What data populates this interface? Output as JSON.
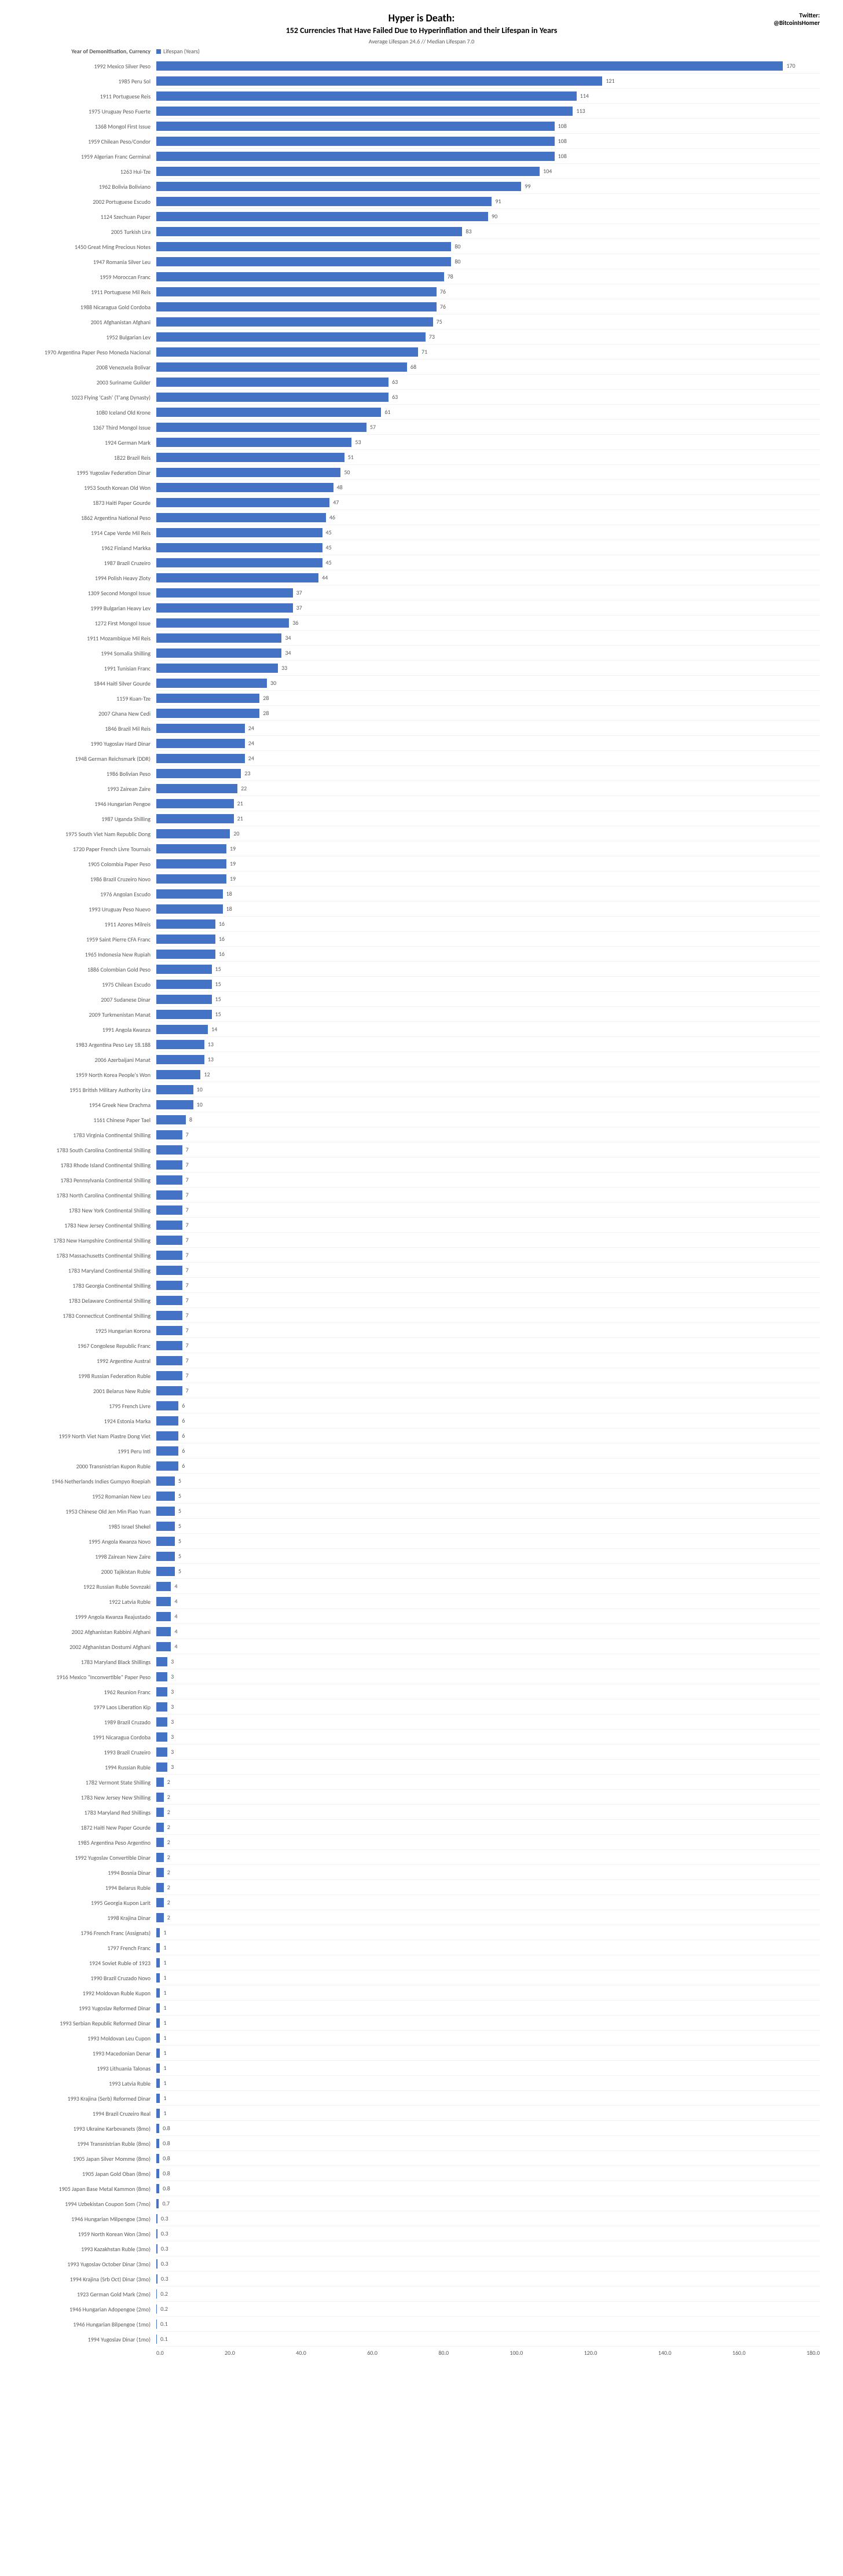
{
  "title": "Hyper is Death:",
  "subtitle": "152 Currencies That Have Failed Due to Hyperinflation and their Lifespan in Years",
  "avg_line": "Average Lifespan 24.6  //  Median Lifespan 7.0",
  "twitter_label": "Twitter:",
  "twitter_handle": "@BitcoinIsHomer",
  "y_axis_title": "Year of Demonitisation, Currency",
  "legend_label": "Lifespan (Years)",
  "bar_color": "#4472c4",
  "background_color": "#ffffff",
  "label_color": "#595959",
  "x_max": 180,
  "x_ticks": [
    "0.0",
    "20.0",
    "40.0",
    "60.0",
    "80.0",
    "100.0",
    "120.0",
    "140.0",
    "160.0",
    "180.0"
  ],
  "rows": [
    {
      "label": "1992 Mexico Silver Peso",
      "value": 170,
      "display": "170"
    },
    {
      "label": "1985 Peru Sol",
      "value": 121,
      "display": "121"
    },
    {
      "label": "1911 Portuguese Reis",
      "value": 114,
      "display": "114"
    },
    {
      "label": "1975 Uruguay Peso Fuerte",
      "value": 113,
      "display": "113"
    },
    {
      "label": "1368 Mongol First Issue",
      "value": 108,
      "display": "108"
    },
    {
      "label": "1959 Chilean Peso/Condor",
      "value": 108,
      "display": "108"
    },
    {
      "label": "1959 Algerian Franc Germinal",
      "value": 108,
      "display": "108"
    },
    {
      "label": "1263 Hui-Tze",
      "value": 104,
      "display": "104"
    },
    {
      "label": "1962 Bolivia Boliviano",
      "value": 99,
      "display": "99"
    },
    {
      "label": "2002 Portuguese Escudo",
      "value": 91,
      "display": "91"
    },
    {
      "label": "1124 Szechuan Paper",
      "value": 90,
      "display": "90"
    },
    {
      "label": "2005 Turkish Lira",
      "value": 83,
      "display": "83"
    },
    {
      "label": "1450 Great Ming Precious Notes",
      "value": 80,
      "display": "80"
    },
    {
      "label": "1947 Romania Silver Leu",
      "value": 80,
      "display": "80"
    },
    {
      "label": "1959 Moroccan Franc",
      "value": 78,
      "display": "78"
    },
    {
      "label": "1911 Portuguese Mil Reis",
      "value": 76,
      "display": "76"
    },
    {
      "label": "1988 Nicaragua Gold Cordoba",
      "value": 76,
      "display": "76"
    },
    {
      "label": "2001 Afghanistan Afghani",
      "value": 75,
      "display": "75"
    },
    {
      "label": "1952 Bulgarian Lev",
      "value": 73,
      "display": "73"
    },
    {
      "label": "1970 Argentina Paper Peso Moneda Nacional",
      "value": 71,
      "display": "71"
    },
    {
      "label": "2008 Venezuela Bolivar",
      "value": 68,
      "display": "68"
    },
    {
      "label": "2003 Suriname Guilder",
      "value": 63,
      "display": "63"
    },
    {
      "label": "1023 Flying 'Cash' (T'ang Dynasty)",
      "value": 63,
      "display": "63"
    },
    {
      "label": "1080 Iceland Old Krone",
      "value": 61,
      "display": "61"
    },
    {
      "label": "1367 Third Mongol Issue",
      "value": 57,
      "display": "57"
    },
    {
      "label": "1924 German Mark",
      "value": 53,
      "display": "53"
    },
    {
      "label": "1822 Brazil Reis",
      "value": 51,
      "display": "51"
    },
    {
      "label": "1995 Yugoslav Federation Dinar",
      "value": 50,
      "display": "50"
    },
    {
      "label": "1953 South Korean Old Won",
      "value": 48,
      "display": "48"
    },
    {
      "label": "1873 Haiti Paper Gourde",
      "value": 47,
      "display": "47"
    },
    {
      "label": "1862 Argentina National Peso",
      "value": 46,
      "display": "46"
    },
    {
      "label": "1914 Cape Verde Mil Reis",
      "value": 45,
      "display": "45"
    },
    {
      "label": "1962 Finland Markka",
      "value": 45,
      "display": "45"
    },
    {
      "label": "1987 Brazil Cruzeiro",
      "value": 45,
      "display": "45"
    },
    {
      "label": "1994 Polish Heavy Zloty",
      "value": 44,
      "display": "44"
    },
    {
      "label": "1309 Second Mongol Issue",
      "value": 37,
      "display": "37"
    },
    {
      "label": "1999 Bulgarian Heavy Lev",
      "value": 37,
      "display": "37"
    },
    {
      "label": "1272 First Mongol Issue",
      "value": 36,
      "display": "36"
    },
    {
      "label": "1911 Mozambique Mil Reis",
      "value": 34,
      "display": "34"
    },
    {
      "label": "1994 Somalia Shilling",
      "value": 34,
      "display": "34"
    },
    {
      "label": "1991 Tunisian Franc",
      "value": 33,
      "display": "33"
    },
    {
      "label": "1844 Haiti Silver Gourde",
      "value": 30,
      "display": "30"
    },
    {
      "label": "1159 Kuan-Tze",
      "value": 28,
      "display": "28"
    },
    {
      "label": "2007 Ghana New Cedi",
      "value": 28,
      "display": "28"
    },
    {
      "label": "1846 Brazil Mil Reis",
      "value": 24,
      "display": "24"
    },
    {
      "label": "1990 Yugoslav Hard Dinar",
      "value": 24,
      "display": "24"
    },
    {
      "label": "1948 German Reichsmark (DDR)",
      "value": 24,
      "display": "24"
    },
    {
      "label": "1986 Bolivian Peso",
      "value": 23,
      "display": "23"
    },
    {
      "label": "1993 Zairean Zaire",
      "value": 22,
      "display": "22"
    },
    {
      "label": "1946 Hungarian Pengoe",
      "value": 21,
      "display": "21"
    },
    {
      "label": "1987 Uganda Shilling",
      "value": 21,
      "display": "21"
    },
    {
      "label": "1975 South Viet Nam Republic Dong",
      "value": 20,
      "display": "20"
    },
    {
      "label": "1720 Paper French Livre Tournais",
      "value": 19,
      "display": "19"
    },
    {
      "label": "1905 Colombia Paper Peso",
      "value": 19,
      "display": "19"
    },
    {
      "label": "1986 Brazil Cruzeiro Novo",
      "value": 19,
      "display": "19"
    },
    {
      "label": "1976 Angolan Escudo",
      "value": 18,
      "display": "18"
    },
    {
      "label": "1993 Uruguay Peso Nuevo",
      "value": 18,
      "display": "18"
    },
    {
      "label": "1911 Azores Milreis",
      "value": 16,
      "display": "16"
    },
    {
      "label": "1959 Saint Pierre CFA Franc",
      "value": 16,
      "display": "16"
    },
    {
      "label": "1965 Indonesia New Rupiah",
      "value": 16,
      "display": "16"
    },
    {
      "label": "1886 Colombian Gold Peso",
      "value": 15,
      "display": "15"
    },
    {
      "label": "1975 Chilean Escudo",
      "value": 15,
      "display": "15"
    },
    {
      "label": "2007 Sudanese Dinar",
      "value": 15,
      "display": "15"
    },
    {
      "label": "2009 Turkmenistan Manat",
      "value": 15,
      "display": "15"
    },
    {
      "label": "1991 Angola Kwanza",
      "value": 14,
      "display": "14"
    },
    {
      "label": "1983 Argentina Peso Ley 18.188",
      "value": 13,
      "display": "13"
    },
    {
      "label": "2006 Azerbaijani Manat",
      "value": 13,
      "display": "13"
    },
    {
      "label": "1959 North Korea People's Won",
      "value": 12,
      "display": "12"
    },
    {
      "label": "1951 British Military Authority Lira",
      "value": 10,
      "display": "10"
    },
    {
      "label": "1954 Greek New Drachma",
      "value": 10,
      "display": "10"
    },
    {
      "label": "1161 Chinese Paper Tael",
      "value": 8,
      "display": "8"
    },
    {
      "label": "1783 Virginia Continental Shilling",
      "value": 7,
      "display": "7"
    },
    {
      "label": "1783 South Carolina Continental Shilling",
      "value": 7,
      "display": "7"
    },
    {
      "label": "1783 Rhode Island Continental Shilling",
      "value": 7,
      "display": "7"
    },
    {
      "label": "1783 Pennsylvania Continental Shilling",
      "value": 7,
      "display": "7"
    },
    {
      "label": "1783 North Carolina Continental Shilling",
      "value": 7,
      "display": "7"
    },
    {
      "label": "1783 New York Continental Shilling",
      "value": 7,
      "display": "7"
    },
    {
      "label": "1783 New Jersey Continental Shilling",
      "value": 7,
      "display": "7"
    },
    {
      "label": "1783 New Hampshire Continental Shilling",
      "value": 7,
      "display": "7"
    },
    {
      "label": "1783 Massachusetts Continental Shilling",
      "value": 7,
      "display": "7"
    },
    {
      "label": "1783 Maryland Continental Shilling",
      "value": 7,
      "display": "7"
    },
    {
      "label": "1783 Georgia Continental Shilling",
      "value": 7,
      "display": "7"
    },
    {
      "label": "1783 Delaware Continental Shilling",
      "value": 7,
      "display": "7"
    },
    {
      "label": "1783 Connecticut Continental Shilling",
      "value": 7,
      "display": "7"
    },
    {
      "label": "1925 Hungarian Korona",
      "value": 7,
      "display": "7"
    },
    {
      "label": "1967 Congolese Republic Franc",
      "value": 7,
      "display": "7"
    },
    {
      "label": "1992 Argentine Austral",
      "value": 7,
      "display": "7"
    },
    {
      "label": "1998 Russian Federation Ruble",
      "value": 7,
      "display": "7"
    },
    {
      "label": "2001 Belarus New Ruble",
      "value": 7,
      "display": "7"
    },
    {
      "label": "1795 French Livre",
      "value": 6,
      "display": "6"
    },
    {
      "label": "1924 Estonia Marka",
      "value": 6,
      "display": "6"
    },
    {
      "label": "1959 North Viet Nam Piastre Dong Viet",
      "value": 6,
      "display": "6"
    },
    {
      "label": "1991 Peru Inti",
      "value": 6,
      "display": "6"
    },
    {
      "label": "2000 Transnistrian Kupon Ruble",
      "value": 6,
      "display": "6"
    },
    {
      "label": "1946 Netherlands Indies Gumpyo Roepiah",
      "value": 5,
      "display": "5"
    },
    {
      "label": "1952 Romanian New Leu",
      "value": 5,
      "display": "5"
    },
    {
      "label": "1953 Chinese Old Jen Min Piao Yuan",
      "value": 5,
      "display": "5"
    },
    {
      "label": "1985 Israel Shekel",
      "value": 5,
      "display": "5"
    },
    {
      "label": "1995 Angola Kwanza Novo",
      "value": 5,
      "display": "5"
    },
    {
      "label": "1998 Zairean New Zaire",
      "value": 5,
      "display": "5"
    },
    {
      "label": "2000 Tajikistan Ruble",
      "value": 5,
      "display": "5"
    },
    {
      "label": "1922 Russian Ruble Sovnzaki",
      "value": 4,
      "display": "4"
    },
    {
      "label": "1922 Latvia Ruble",
      "value": 4,
      "display": "4"
    },
    {
      "label": "1999 Angola Kwanza Reajustado",
      "value": 4,
      "display": "4"
    },
    {
      "label": "2002 Afghanistan Rabbini Afghani",
      "value": 4,
      "display": "4"
    },
    {
      "label": "2002 Afghanistan Dostumi Afghani",
      "value": 4,
      "display": "4"
    },
    {
      "label": "1783 Maryland Black Shillings",
      "value": 3,
      "display": "3"
    },
    {
      "label": "1916 Mexico \"Inconvertible\" Paper Peso",
      "value": 3,
      "display": "3"
    },
    {
      "label": "1962 Reunion Franc",
      "value": 3,
      "display": "3"
    },
    {
      "label": "1979 Laos Liberation Kip",
      "value": 3,
      "display": "3"
    },
    {
      "label": "1989 Brazil Cruzado",
      "value": 3,
      "display": "3"
    },
    {
      "label": "1991 Nicaragua Cordoba",
      "value": 3,
      "display": "3"
    },
    {
      "label": "1993 Brazil Cruzeiro",
      "value": 3,
      "display": "3"
    },
    {
      "label": "1994 Russian Ruble",
      "value": 3,
      "display": "3"
    },
    {
      "label": "1782 Vermont State Shilling",
      "value": 2,
      "display": "2"
    },
    {
      "label": "1783 New Jersey New Shilling",
      "value": 2,
      "display": "2"
    },
    {
      "label": "1783 Maryland Red Shillings",
      "value": 2,
      "display": "2"
    },
    {
      "label": "1872 Haiti New Paper Gourde",
      "value": 2,
      "display": "2"
    },
    {
      "label": "1985 Argentina Peso Argentino",
      "value": 2,
      "display": "2"
    },
    {
      "label": "1992 Yugoslav Convertible Dinar",
      "value": 2,
      "display": "2"
    },
    {
      "label": "1994 Bosnia Dinar",
      "value": 2,
      "display": "2"
    },
    {
      "label": "1994 Belarus Ruble",
      "value": 2,
      "display": "2"
    },
    {
      "label": "1995 Georgia Kupon Larit",
      "value": 2,
      "display": "2"
    },
    {
      "label": "1998 Krajina Dinar",
      "value": 2,
      "display": "2"
    },
    {
      "label": "1796 French Franc (Assignats)",
      "value": 1,
      "display": "1"
    },
    {
      "label": "1797 French Franc",
      "value": 1,
      "display": "1"
    },
    {
      "label": "1924 Soviet Ruble of 1923",
      "value": 1,
      "display": "1"
    },
    {
      "label": "1990 Brazil Cruzado Novo",
      "value": 1,
      "display": "1"
    },
    {
      "label": "1992 Moldovan Ruble Kupon",
      "value": 1,
      "display": "1"
    },
    {
      "label": "1993 Yugoslav Reformed Dinar",
      "value": 1,
      "display": "1"
    },
    {
      "label": "1993 Serbian Republic Reformed Dinar",
      "value": 1,
      "display": "1"
    },
    {
      "label": "1993 Moldovan Leu Cupon",
      "value": 1,
      "display": "1"
    },
    {
      "label": "1993 Macedonian Denar",
      "value": 1,
      "display": "1"
    },
    {
      "label": "1993 Lithuania Talonas",
      "value": 1,
      "display": "1"
    },
    {
      "label": "1993 Latvia Ruble",
      "value": 1,
      "display": "1"
    },
    {
      "label": "1993 Krajina (Serb) Reformed Dinar",
      "value": 1,
      "display": "1"
    },
    {
      "label": "1994 Brazil Cruzeiro Real",
      "value": 1,
      "display": "1"
    },
    {
      "label": "1993 Ukraine Karbovanets  (8mo)",
      "value": 0.8,
      "display": "0.8"
    },
    {
      "label": "1994 Transnistrian Ruble  (8mo)",
      "value": 0.8,
      "display": "0.8"
    },
    {
      "label": "1905 Japan Silver Momme  (8mo)",
      "value": 0.8,
      "display": "0.8"
    },
    {
      "label": "1905 Japan Gold Oban  (8mo)",
      "value": 0.8,
      "display": "0.8"
    },
    {
      "label": "1905 Japan Base Metal Kammon  (8mo)",
      "value": 0.8,
      "display": "0.8"
    },
    {
      "label": "1994 Uzbekistan Coupon Som  (7mo)",
      "value": 0.7,
      "display": "0.7"
    },
    {
      "label": "1946 Hungarian Milpengoe  (3mo)",
      "value": 0.3,
      "display": "0.3"
    },
    {
      "label": "1959 North Korean Won  (3mo)",
      "value": 0.3,
      "display": "0.3"
    },
    {
      "label": "1993 Kazakhstan Ruble  (3mo)",
      "value": 0.3,
      "display": "0.3"
    },
    {
      "label": "1993 Yugoslav October Dinar  (3mo)",
      "value": 0.3,
      "display": "0.3"
    },
    {
      "label": "1994 Krajina (Srb Oct) Dinar  (3mo)",
      "value": 0.3,
      "display": "0.3"
    },
    {
      "label": "1923 German Gold Mark  (2mo)",
      "value": 0.2,
      "display": "0.2"
    },
    {
      "label": "1946 Hungarian Adopengoe  (2mo)",
      "value": 0.2,
      "display": "0.2"
    },
    {
      "label": "1946 Hungarian Bilpengoe  (1mo)",
      "value": 0.1,
      "display": "0.1"
    },
    {
      "label": "1994 Yugoslav Dinar  (1mo)",
      "value": 0.1,
      "display": "0.1"
    }
  ]
}
